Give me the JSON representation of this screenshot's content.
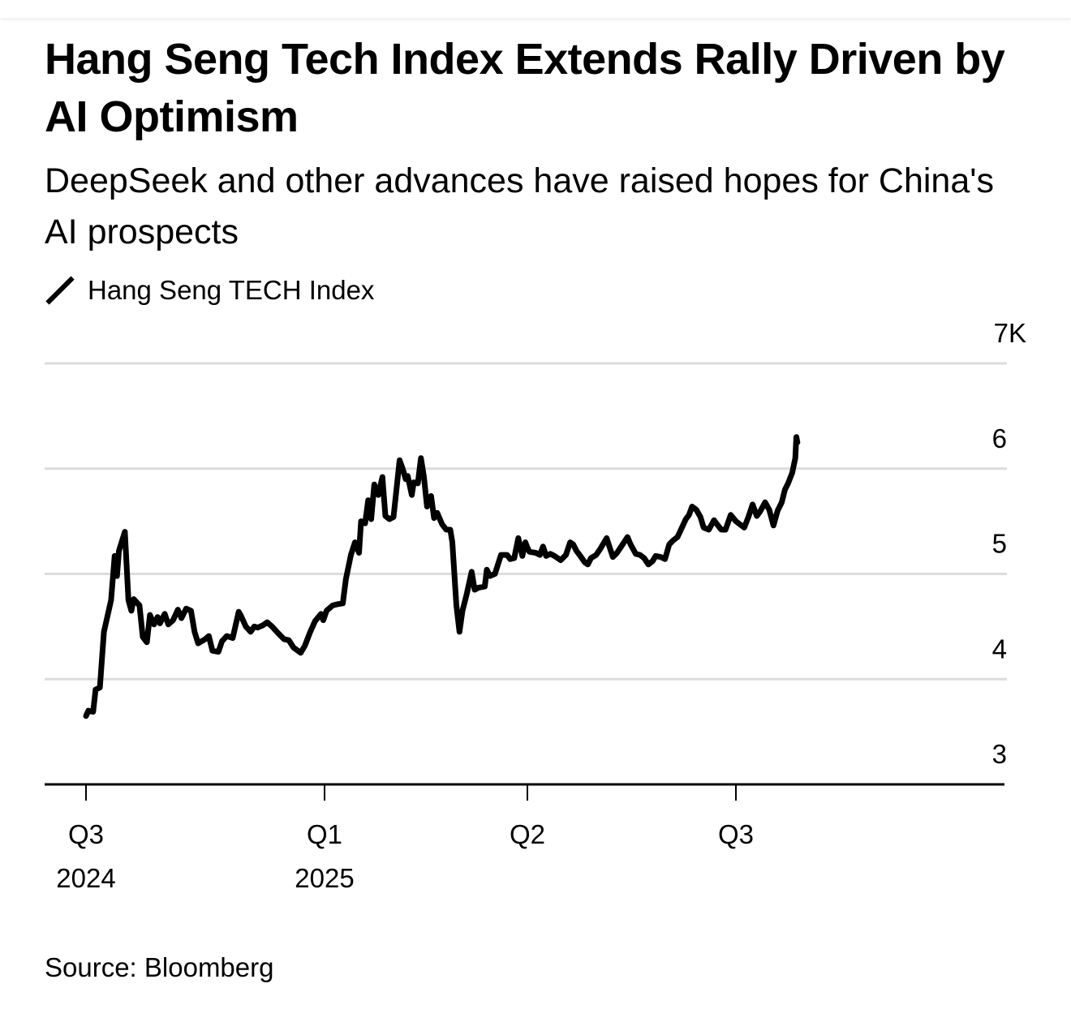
{
  "title": "Hang Seng Tech Index Extends Rally Driven by AI Optimism",
  "subtitle": "DeepSeek and other advances have raised hopes for China's AI prospects",
  "legend": [
    {
      "label": "Hang Seng TECH Index",
      "color": "#000000",
      "icon": "line-swatch-icon"
    }
  ],
  "source": "Source: Bloomberg",
  "chart_data": {
    "type": "line",
    "title": "Hang Seng Tech Index Extends Rally Driven by AI Optimism",
    "subtitle": "DeepSeek and other advances have raised hopes for China's AI prospects",
    "xlabel": "",
    "ylabel": "",
    "ylim": [
      3000,
      7000
    ],
    "yticks": [
      3000,
      4000,
      5000,
      6000,
      7000
    ],
    "ytick_labels": [
      "3",
      "4",
      "5",
      "6",
      "7K"
    ],
    "xticks": [
      {
        "pos": 0,
        "label": "Q3",
        "sublabel": "2024"
      },
      {
        "pos": 1,
        "label": "Q1",
        "sublabel": "2025"
      },
      {
        "pos": 2,
        "label": "Q2",
        "sublabel": ""
      },
      {
        "pos": 3,
        "label": "Q3",
        "sublabel": ""
      }
    ],
    "x_unit": "fractional tick position (0=Q3 2024, 1=Q1 2025, 2=Q2 2025, 3=Q3 2025)",
    "grid": true,
    "legend_position": "top-left",
    "series": [
      {
        "name": "Hang Seng TECH Index",
        "color": "#000000",
        "points": [
          [
            0.0,
            3650
          ],
          [
            0.01,
            3700
          ],
          [
            0.03,
            3690
          ],
          [
            0.04,
            3900
          ],
          [
            0.058,
            3920
          ],
          [
            0.075,
            4450
          ],
          [
            0.105,
            4750
          ],
          [
            0.12,
            5170
          ],
          [
            0.13,
            4980
          ],
          [
            0.138,
            5220
          ],
          [
            0.163,
            5400
          ],
          [
            0.178,
            4750
          ],
          [
            0.19,
            4650
          ],
          [
            0.2,
            4760
          ],
          [
            0.224,
            4700
          ],
          [
            0.238,
            4400
          ],
          [
            0.255,
            4350
          ],
          [
            0.268,
            4610
          ],
          [
            0.285,
            4520
          ],
          [
            0.3,
            4590
          ],
          [
            0.31,
            4530
          ],
          [
            0.33,
            4620
          ],
          [
            0.345,
            4520
          ],
          [
            0.365,
            4560
          ],
          [
            0.385,
            4660
          ],
          [
            0.4,
            4580
          ],
          [
            0.42,
            4670
          ],
          [
            0.44,
            4650
          ],
          [
            0.455,
            4450
          ],
          [
            0.47,
            4340
          ],
          [
            0.5,
            4380
          ],
          [
            0.515,
            4410
          ],
          [
            0.53,
            4270
          ],
          [
            0.555,
            4260
          ],
          [
            0.57,
            4360
          ],
          [
            0.59,
            4410
          ],
          [
            0.615,
            4390
          ],
          [
            0.64,
            4640
          ],
          [
            0.65,
            4600
          ],
          [
            0.67,
            4500
          ],
          [
            0.69,
            4450
          ],
          [
            0.705,
            4500
          ],
          [
            0.72,
            4490
          ],
          [
            0.74,
            4510
          ],
          [
            0.76,
            4540
          ],
          [
            0.78,
            4500
          ],
          [
            0.8,
            4450
          ],
          [
            0.83,
            4380
          ],
          [
            0.85,
            4370
          ],
          [
            0.87,
            4300
          ],
          [
            0.9,
            4250
          ],
          [
            0.918,
            4320
          ],
          [
            0.94,
            4450
          ],
          [
            0.96,
            4550
          ],
          [
            0.985,
            4620
          ],
          [
            0.995,
            4560
          ],
          [
            1.01,
            4650
          ],
          [
            1.04,
            4700
          ],
          [
            1.06,
            4710
          ],
          [
            1.09,
            4720
          ],
          [
            1.105,
            4950
          ],
          [
            1.13,
            5180
          ],
          [
            1.15,
            5300
          ],
          [
            1.17,
            5200
          ],
          [
            1.18,
            5500
          ],
          [
            1.2,
            5480
          ],
          [
            1.215,
            5700
          ],
          [
            1.23,
            5520
          ],
          [
            1.245,
            5850
          ],
          [
            1.265,
            5750
          ],
          [
            1.285,
            5920
          ],
          [
            1.3,
            5550
          ],
          [
            1.32,
            5520
          ],
          [
            1.34,
            5540
          ],
          [
            1.37,
            6080
          ],
          [
            1.385,
            6000
          ],
          [
            1.4,
            5900
          ],
          [
            1.41,
            5930
          ],
          [
            1.43,
            5750
          ],
          [
            1.44,
            5870
          ],
          [
            1.46,
            5860
          ],
          [
            1.475,
            6100
          ],
          [
            1.49,
            5920
          ],
          [
            1.505,
            5640
          ],
          [
            1.525,
            5740
          ],
          [
            1.54,
            5530
          ],
          [
            1.555,
            5580
          ],
          [
            1.58,
            5470
          ],
          [
            1.6,
            5420
          ],
          [
            1.62,
            5420
          ],
          [
            1.63,
            5300
          ],
          [
            1.65,
            4700
          ],
          [
            1.665,
            4450
          ],
          [
            1.68,
            4650
          ],
          [
            1.7,
            4800
          ],
          [
            1.725,
            5020
          ],
          [
            1.74,
            4850
          ],
          [
            1.76,
            4870
          ],
          [
            1.79,
            4880
          ],
          [
            1.8,
            5040
          ],
          [
            1.815,
            4980
          ],
          [
            1.84,
            5000
          ],
          [
            1.87,
            5180
          ],
          [
            1.9,
            5180
          ],
          [
            1.915,
            5140
          ],
          [
            1.935,
            5150
          ],
          [
            1.955,
            5340
          ],
          [
            1.975,
            5170
          ],
          [
            1.99,
            5300
          ],
          [
            2.0,
            5250
          ],
          [
            2.01,
            5210
          ],
          [
            2.04,
            5200
          ],
          [
            2.06,
            5180
          ],
          [
            2.075,
            5260
          ],
          [
            2.09,
            5170
          ],
          [
            2.11,
            5190
          ],
          [
            2.13,
            5170
          ],
          [
            2.16,
            5130
          ],
          [
            2.185,
            5180
          ],
          [
            2.205,
            5300
          ],
          [
            2.22,
            5280
          ],
          [
            2.235,
            5220
          ],
          [
            2.25,
            5180
          ],
          [
            2.275,
            5110
          ],
          [
            2.29,
            5090
          ],
          [
            2.305,
            5150
          ],
          [
            2.33,
            5180
          ],
          [
            2.35,
            5240
          ],
          [
            2.38,
            5340
          ],
          [
            2.395,
            5250
          ],
          [
            2.41,
            5160
          ],
          [
            2.43,
            5200
          ],
          [
            2.46,
            5290
          ],
          [
            2.48,
            5350
          ],
          [
            2.495,
            5280
          ],
          [
            2.52,
            5190
          ],
          [
            2.54,
            5180
          ],
          [
            2.56,
            5150
          ],
          [
            2.58,
            5090
          ],
          [
            2.6,
            5120
          ],
          [
            2.615,
            5170
          ],
          [
            2.64,
            5160
          ],
          [
            2.66,
            5140
          ],
          [
            2.68,
            5280
          ],
          [
            2.7,
            5320
          ],
          [
            2.72,
            5350
          ],
          [
            2.76,
            5520
          ],
          [
            2.775,
            5560
          ],
          [
            2.79,
            5640
          ],
          [
            2.81,
            5610
          ],
          [
            2.83,
            5540
          ],
          [
            2.845,
            5440
          ],
          [
            2.87,
            5420
          ],
          [
            2.895,
            5510
          ],
          [
            2.91,
            5470
          ],
          [
            2.93,
            5420
          ],
          [
            2.95,
            5420
          ],
          [
            2.975,
            5560
          ],
          [
            3.0,
            5500
          ],
          [
            3.02,
            5470
          ],
          [
            3.04,
            5440
          ],
          [
            3.06,
            5540
          ],
          [
            3.08,
            5660
          ],
          [
            3.1,
            5550
          ],
          [
            3.115,
            5590
          ],
          [
            3.14,
            5680
          ],
          [
            3.16,
            5610
          ],
          [
            3.18,
            5460
          ],
          [
            3.2,
            5600
          ],
          [
            3.22,
            5680
          ],
          [
            3.235,
            5800
          ],
          [
            3.25,
            5860
          ],
          [
            3.27,
            5960
          ],
          [
            3.285,
            6100
          ],
          [
            3.29,
            6300
          ],
          [
            3.295,
            6250
          ]
        ]
      }
    ]
  }
}
